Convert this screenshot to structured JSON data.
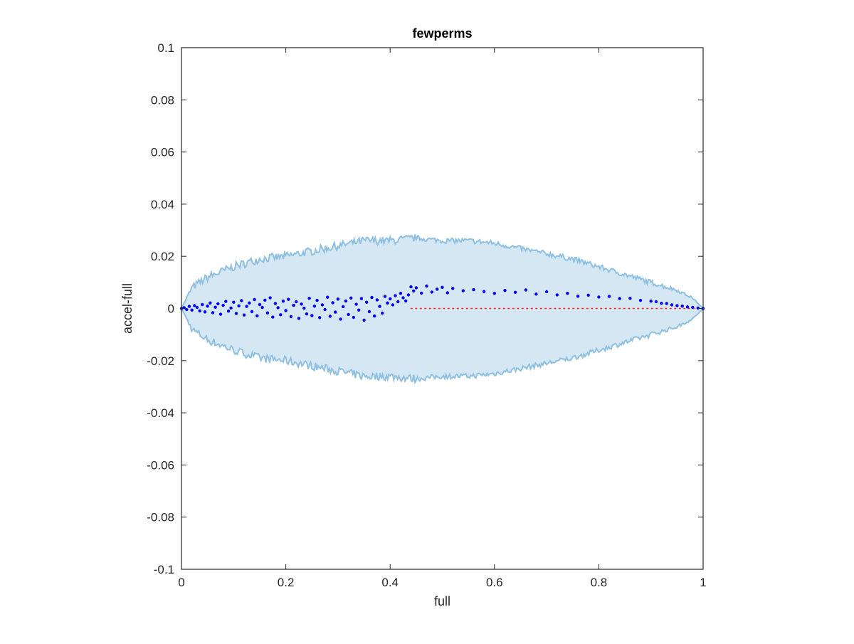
{
  "chart_data": {
    "type": "scatter",
    "title": "fewperms",
    "xlabel": "full",
    "ylabel": "accel-full",
    "xlim": [
      0,
      1
    ],
    "ylim": [
      -0.1,
      0.1
    ],
    "grid": false,
    "x_ticks": [
      "0",
      "0.2",
      "0.4",
      "0.6",
      "0.8",
      "1"
    ],
    "y_ticks": [
      "0.1",
      "0.08",
      "0.06",
      "0.04",
      "0.02",
      "0",
      "-0.02",
      "-0.04",
      "-0.06",
      "-0.08",
      "-0.1"
    ],
    "series": [
      {
        "kind": "band",
        "color": "#8fc0e0",
        "fill_color": "#d6e7f4",
        "envelope": [
          [
            0.0,
            0.0
          ],
          [
            0.02,
            0.008
          ],
          [
            0.05,
            0.012
          ],
          [
            0.1,
            0.016
          ],
          [
            0.15,
            0.019
          ],
          [
            0.2,
            0.02
          ],
          [
            0.25,
            0.022
          ],
          [
            0.3,
            0.024
          ],
          [
            0.35,
            0.026
          ],
          [
            0.4,
            0.026
          ],
          [
            0.45,
            0.027
          ],
          [
            0.5,
            0.026
          ],
          [
            0.55,
            0.026
          ],
          [
            0.6,
            0.025
          ],
          [
            0.65,
            0.023
          ],
          [
            0.7,
            0.021
          ],
          [
            0.75,
            0.019
          ],
          [
            0.8,
            0.016
          ],
          [
            0.85,
            0.013
          ],
          [
            0.9,
            0.01
          ],
          [
            0.95,
            0.007
          ],
          [
            0.98,
            0.004
          ],
          [
            1.0,
            0.0
          ]
        ]
      },
      {
        "kind": "dotted-line",
        "color": "#ff3333",
        "x": [
          0.44,
          1.0
        ],
        "y": [
          0,
          0
        ]
      },
      {
        "kind": "points",
        "color": "#0000ff",
        "points": [
          [
            0.0,
            0.0
          ],
          [
            0.005,
            0.0003
          ],
          [
            0.01,
            -0.0004
          ],
          [
            0.015,
            0.0008
          ],
          [
            0.02,
            -0.0006
          ],
          [
            0.025,
            0.0011
          ],
          [
            0.03,
            0.0004
          ],
          [
            0.035,
            -0.0009
          ],
          [
            0.04,
            0.0015
          ],
          [
            0.045,
            -0.0013
          ],
          [
            0.05,
            0.0009
          ],
          [
            0.055,
            0.0021
          ],
          [
            0.06,
            -0.0016
          ],
          [
            0.065,
            0.0005
          ],
          [
            0.07,
            0.0018
          ],
          [
            0.075,
            -0.0022
          ],
          [
            0.08,
            0.0012
          ],
          [
            0.085,
            0.0027
          ],
          [
            0.09,
            -0.001
          ],
          [
            0.095,
            0.0002
          ],
          [
            0.1,
            0.0024
          ],
          [
            0.105,
            -0.0019
          ],
          [
            0.11,
            0.001
          ],
          [
            0.115,
            0.003
          ],
          [
            0.12,
            -0.0025
          ],
          [
            0.125,
            0.0008
          ],
          [
            0.13,
            0.0021
          ],
          [
            0.135,
            -0.0012
          ],
          [
            0.14,
            0.0034
          ],
          [
            0.145,
            -0.0028
          ],
          [
            0.15,
            0.0015
          ],
          [
            0.155,
            0.0004
          ],
          [
            0.16,
            0.0032
          ],
          [
            0.165,
            -0.0017
          ],
          [
            0.17,
            0.0041
          ],
          [
            0.175,
            -0.0033
          ],
          [
            0.18,
            0.0019
          ],
          [
            0.185,
            0.0003
          ],
          [
            0.19,
            -0.0024
          ],
          [
            0.195,
            0.0028
          ],
          [
            0.2,
            -0.0008
          ],
          [
            0.205,
            0.0035
          ],
          [
            0.21,
            -0.0031
          ],
          [
            0.215,
            0.0012
          ],
          [
            0.22,
            0.0026
          ],
          [
            0.225,
            -0.0038
          ],
          [
            0.23,
            0.0017
          ],
          [
            0.235,
            0.0001
          ],
          [
            0.24,
            -0.0021
          ],
          [
            0.245,
            0.0039
          ],
          [
            0.25,
            -0.0027
          ],
          [
            0.255,
            0.0009
          ],
          [
            0.26,
            0.0031
          ],
          [
            0.265,
            -0.0035
          ],
          [
            0.27,
            0.0014
          ],
          [
            0.275,
            -0.0004
          ],
          [
            0.28,
            0.0043
          ],
          [
            0.285,
            -0.003
          ],
          [
            0.29,
            0.0022
          ],
          [
            0.295,
            -0.0014
          ],
          [
            0.3,
            0.0036
          ],
          [
            0.305,
            -0.0041
          ],
          [
            0.31,
            0.0007
          ],
          [
            0.315,
            0.0029
          ],
          [
            0.32,
            -0.0023
          ],
          [
            0.325,
            0.004
          ],
          [
            0.33,
            -0.0034
          ],
          [
            0.335,
            0.0016
          ],
          [
            0.34,
            -0.0006
          ],
          [
            0.345,
            0.0038
          ],
          [
            0.35,
            -0.0045
          ],
          [
            0.355,
            0.0024
          ],
          [
            0.36,
            -0.0012
          ],
          [
            0.365,
            0.0042
          ],
          [
            0.37,
            -0.0029
          ],
          [
            0.375,
            0.0033
          ],
          [
            0.38,
            0.0008
          ],
          [
            0.385,
            -0.0018
          ],
          [
            0.39,
            0.0046
          ],
          [
            0.395,
            0.0021
          ],
          [
            0.4,
            0.0037
          ],
          [
            0.405,
            0.0014
          ],
          [
            0.41,
            0.0049
          ],
          [
            0.415,
            0.0026
          ],
          [
            0.42,
            0.0058
          ],
          [
            0.425,
            0.0041
          ],
          [
            0.43,
            0.0029
          ],
          [
            0.435,
            0.0052
          ],
          [
            0.44,
            0.0083
          ],
          [
            0.445,
            0.0067
          ],
          [
            0.45,
            0.0079
          ],
          [
            0.46,
            0.0059
          ],
          [
            0.47,
            0.0086
          ],
          [
            0.48,
            0.0063
          ],
          [
            0.49,
            0.0074
          ],
          [
            0.5,
            0.0081
          ],
          [
            0.51,
            0.006
          ],
          [
            0.52,
            0.0077
          ],
          [
            0.54,
            0.0068
          ],
          [
            0.56,
            0.0072
          ],
          [
            0.58,
            0.0065
          ],
          [
            0.6,
            0.0058
          ],
          [
            0.62,
            0.0069
          ],
          [
            0.64,
            0.0062
          ],
          [
            0.66,
            0.0071
          ],
          [
            0.68,
            0.0055
          ],
          [
            0.7,
            0.0064
          ],
          [
            0.72,
            0.0052
          ],
          [
            0.74,
            0.0058
          ],
          [
            0.76,
            0.0047
          ],
          [
            0.78,
            0.0051
          ],
          [
            0.8,
            0.0044
          ],
          [
            0.82,
            0.0046
          ],
          [
            0.84,
            0.0038
          ],
          [
            0.86,
            0.0039
          ],
          [
            0.88,
            0.0031
          ],
          [
            0.9,
            0.0028
          ],
          [
            0.91,
            0.0026
          ],
          [
            0.92,
            0.002
          ],
          [
            0.93,
            0.0019
          ],
          [
            0.94,
            0.0014
          ],
          [
            0.95,
            0.0011
          ],
          [
            0.96,
            0.0009
          ],
          [
            0.97,
            0.0006
          ],
          [
            0.98,
            0.0004
          ],
          [
            0.99,
            0.0002
          ],
          [
            1.0,
            0.0
          ]
        ]
      }
    ]
  }
}
